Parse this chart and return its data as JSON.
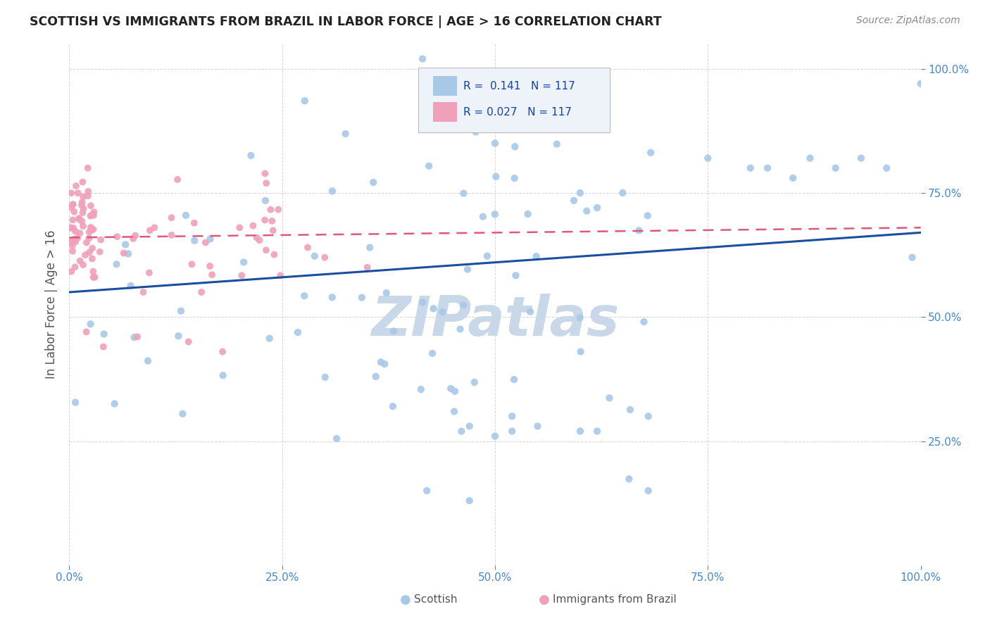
{
  "title": "SCOTTISH VS IMMIGRANTS FROM BRAZIL IN LABOR FORCE | AGE > 16 CORRELATION CHART",
  "source": "Source: ZipAtlas.com",
  "ylabel": "In Labor Force | Age > 16",
  "R_scottish": 0.141,
  "R_brazil": 0.027,
  "N_scottish": 117,
  "N_brazil": 117,
  "scottish_color": "#a8c8e8",
  "brazil_color": "#f0a0b8",
  "scottish_line_color": "#1a4fa0",
  "brazil_line_color": "#e05878",
  "background_color": "#ffffff",
  "grid_color": "#cccccc",
  "title_color": "#222222",
  "axis_tick_color": "#4488cc",
  "legend_box_color": "#eef3fa",
  "legend_border_color": "#bbbbbb",
  "watermark_text": "ZIPatlas",
  "watermark_color": "#c8d8e8",
  "legend_text_color": "#1144aa",
  "ylabel_color": "#555555",
  "source_color": "#888888",
  "bottom_legend_color": "#555555"
}
